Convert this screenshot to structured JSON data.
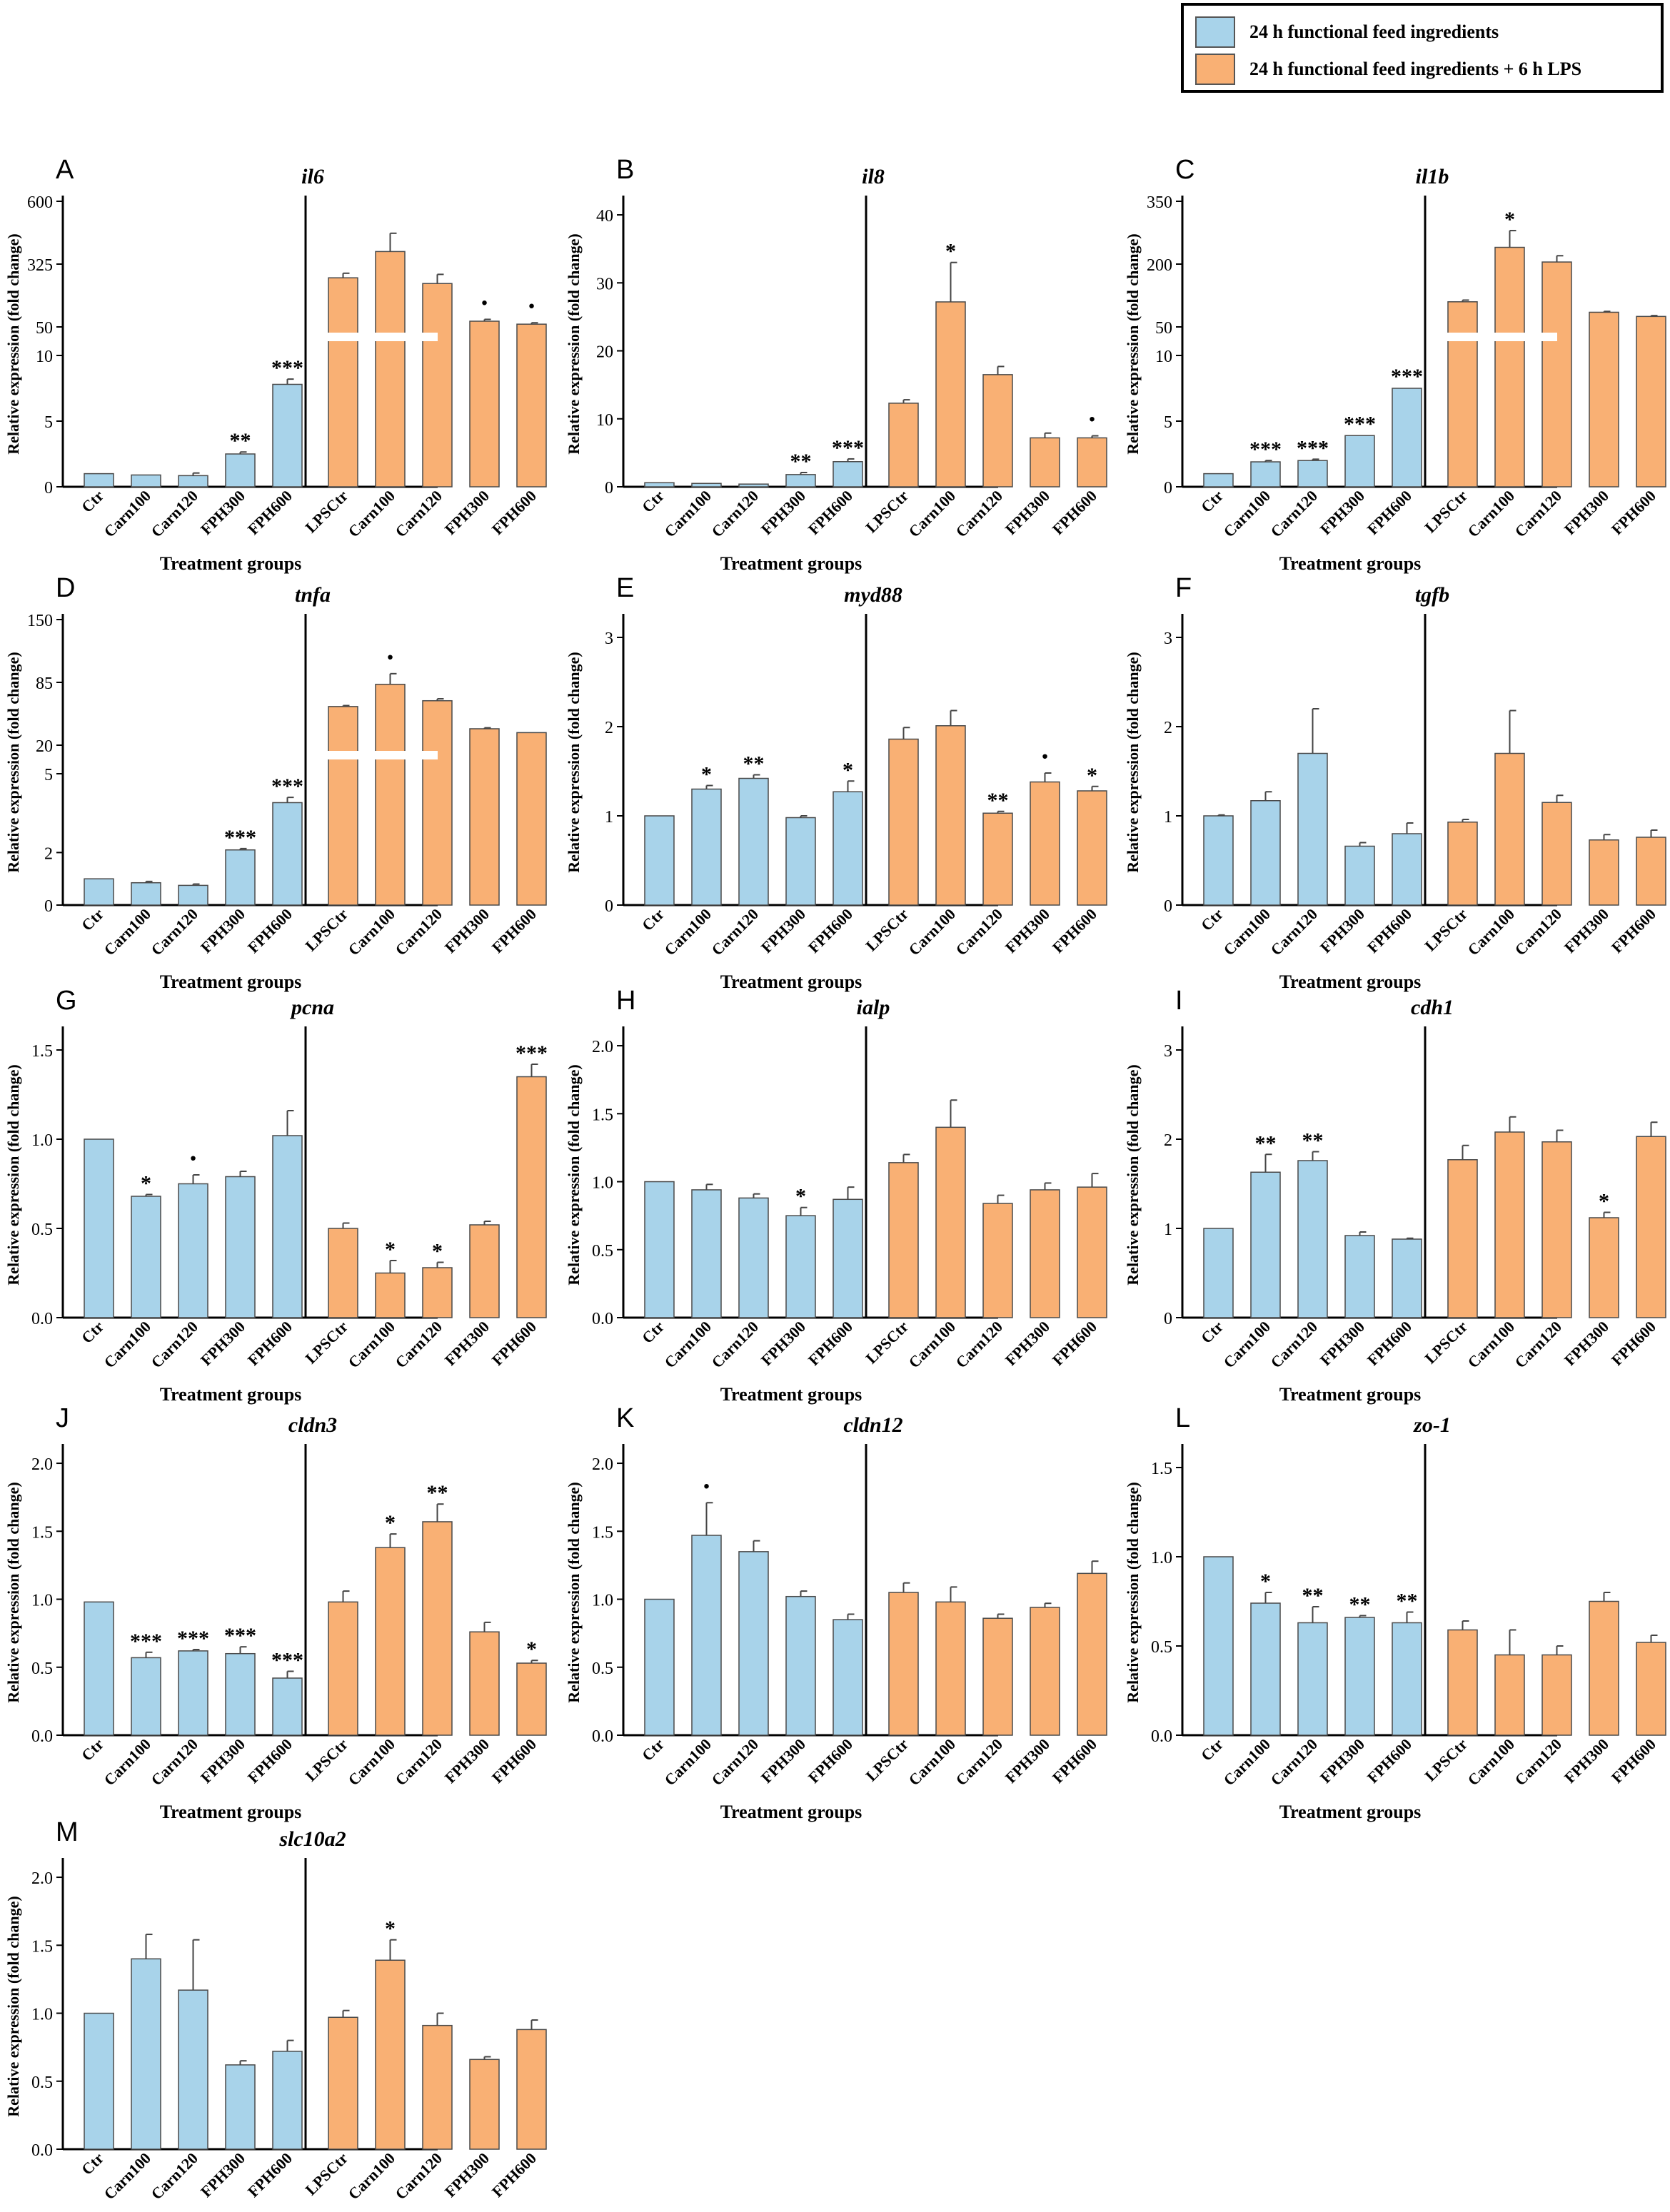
{
  "legend": {
    "items": [
      {
        "label": "24 h functional feed ingredients",
        "color": "#a8d3ea"
      },
      {
        "label": "24 h functional feed ingredients + 6 h LPS",
        "color": "#f9b074"
      }
    ]
  },
  "axis_labels": {
    "y": "Relative expression (fold change)",
    "x": "Treatment groups"
  },
  "colors": {
    "control_bars": "#a8d3ea",
    "lps_bars": "#f9b074",
    "bar_edge": "#4a4a4a"
  },
  "chart_data": [
    {
      "panel": "A",
      "title": "il6",
      "type": "bar",
      "broken_axis": true,
      "lower_ticks": [
        "0",
        "5",
        "10"
      ],
      "lower_range": [
        0,
        10
      ],
      "upper_ticks": [
        "50",
        "325",
        "600"
      ],
      "upper_range": [
        50,
        600
      ],
      "groups": [
        {
          "name": "24 h functional feed ingredients",
          "categories": [
            "Ctr",
            "Carn100",
            "Carn120",
            "FPH300",
            "FPH600"
          ],
          "values": [
            1.0,
            0.9,
            0.85,
            2.5,
            7.8
          ],
          "errors": [
            0.05,
            0.05,
            0.2,
            0.15,
            0.4
          ],
          "significance": [
            "",
            "",
            "",
            "**",
            "***"
          ]
        },
        {
          "name": "24 h functional feed ingredients + 6 h LPS",
          "categories": [
            "LPSCtr",
            "Carn100",
            "Carn120",
            "FPH300",
            "FPH600"
          ],
          "values": [
            265,
            380,
            240,
            75,
            62
          ],
          "errors": [
            20,
            80,
            40,
            8,
            6
          ],
          "significance": [
            "",
            "",
            "",
            "·",
            "·"
          ]
        }
      ]
    },
    {
      "panel": "B",
      "title": "il8",
      "type": "bar",
      "broken_axis": false,
      "ticks": [
        "0",
        "10",
        "20",
        "30",
        "40"
      ],
      "ylim": [
        0,
        42
      ],
      "groups": [
        {
          "name": "24 h functional feed ingredients",
          "categories": [
            "Ctr",
            "Carn100",
            "Carn120",
            "FPH300",
            "FPH600"
          ],
          "values": [
            0.6,
            0.5,
            0.4,
            1.8,
            3.7
          ],
          "errors": [
            0.05,
            0.1,
            0.1,
            0.3,
            0.4
          ],
          "significance": [
            "",
            "",
            "",
            "**",
            "***"
          ]
        },
        {
          "name": "24 h functional feed ingredients + 6 h LPS",
          "categories": [
            "LPSCtr",
            "Carn100",
            "Carn120",
            "FPH300",
            "FPH600"
          ],
          "values": [
            12.3,
            27.2,
            16.5,
            7.2,
            7.2
          ],
          "errors": [
            0.5,
            5.8,
            1.2,
            0.7,
            0.3
          ],
          "significance": [
            "",
            "*",
            "",
            "",
            "·"
          ]
        }
      ]
    },
    {
      "panel": "C",
      "title": "il1b",
      "type": "bar",
      "broken_axis": true,
      "lower_ticks": [
        "0",
        "5",
        "10"
      ],
      "lower_range": [
        0,
        10
      ],
      "upper_ticks": [
        "50",
        "200",
        "350"
      ],
      "upper_range": [
        50,
        350
      ],
      "groups": [
        {
          "name": "24 h functional feed ingredients",
          "categories": [
            "Ctr",
            "Carn100",
            "Carn120",
            "FPH300",
            "FPH600"
          ],
          "values": [
            1.0,
            1.9,
            2.0,
            3.9,
            7.5
          ],
          "errors": [
            0.05,
            0.1,
            0.1,
            0.05,
            0.05
          ],
          "significance": [
            "",
            "***",
            "***",
            "***",
            "***"
          ]
        },
        {
          "name": "24 h functional feed ingredients + 6 h LPS",
          "categories": [
            "LPSCtr",
            "Carn100",
            "Carn120",
            "FPH300",
            "FPH600"
          ],
          "values": [
            110,
            240,
            205,
            85,
            75
          ],
          "errors": [
            4,
            40,
            15,
            2,
            2
          ],
          "significance": [
            "",
            "*",
            "",
            "",
            ""
          ]
        }
      ]
    },
    {
      "panel": "D",
      "title": "tnfa",
      "type": "bar",
      "broken_axis": true,
      "lower_ticks": [
        "0",
        "2",
        "5"
      ],
      "lower_range": [
        0,
        5
      ],
      "upper_ticks": [
        "20",
        "85",
        "150"
      ],
      "upper_range": [
        20,
        150
      ],
      "groups": [
        {
          "name": "24 h functional feed ingredients",
          "categories": [
            "Ctr",
            "Carn100",
            "Carn120",
            "FPH300",
            "FPH600"
          ],
          "values": [
            1.0,
            0.85,
            0.75,
            2.1,
            3.9
          ],
          "errors": [
            0.02,
            0.05,
            0.05,
            0.05,
            0.2
          ],
          "significance": [
            "",
            "",
            "",
            "***",
            "***"
          ]
        },
        {
          "name": "24 h functional feed ingredients + 6 h LPS",
          "categories": [
            "LPSCtr",
            "Carn100",
            "Carn120",
            "FPH300",
            "FPH600"
          ],
          "values": [
            60,
            83,
            66,
            37,
            33
          ],
          "errors": [
            1,
            11,
            2,
            1,
            0.5
          ],
          "significance": [
            "",
            "·",
            "",
            "",
            ""
          ]
        }
      ]
    },
    {
      "panel": "E",
      "title": "myd88",
      "type": "bar",
      "broken_axis": false,
      "ticks": [
        "0",
        "1",
        "2",
        "3"
      ],
      "ylim": [
        0,
        3.2
      ],
      "groups": [
        {
          "name": "24 h functional feed ingredients",
          "categories": [
            "Ctr",
            "Carn100",
            "Carn120",
            "FPH300",
            "FPH600"
          ],
          "values": [
            1.0,
            1.3,
            1.42,
            0.98,
            1.27
          ],
          "errors": [
            0.005,
            0.04,
            0.04,
            0.02,
            0.12
          ],
          "significance": [
            "",
            "*",
            "**",
            "",
            "*"
          ]
        },
        {
          "name": "24 h functional feed ingredients + 6 h LPS",
          "categories": [
            "LPSCtr",
            "Carn100",
            "Carn120",
            "FPH300",
            "FPH600"
          ],
          "values": [
            1.86,
            2.01,
            1.03,
            1.38,
            1.28
          ],
          "errors": [
            0.13,
            0.17,
            0.02,
            0.1,
            0.05
          ],
          "significance": [
            "",
            "",
            "**",
            "·",
            "*"
          ]
        }
      ]
    },
    {
      "panel": "F",
      "title": "tgfb",
      "type": "bar",
      "broken_axis": false,
      "ticks": [
        "0",
        "1",
        "2",
        "3"
      ],
      "ylim": [
        0,
        3.2
      ],
      "groups": [
        {
          "name": "24 h functional feed ingredients",
          "categories": [
            "Ctr",
            "Carn100",
            "Carn120",
            "FPH300",
            "FPH600"
          ],
          "values": [
            1.0,
            1.17,
            1.7,
            0.66,
            0.8
          ],
          "errors": [
            0.01,
            0.1,
            0.5,
            0.04,
            0.12
          ],
          "significance": [
            "",
            "",
            "",
            "",
            ""
          ]
        },
        {
          "name": "24 h functional feed ingredients + 6 h LPS",
          "categories": [
            "LPSCtr",
            "Carn100",
            "Carn120",
            "FPH300",
            "FPH600"
          ],
          "values": [
            0.93,
            1.7,
            1.15,
            0.73,
            0.76
          ],
          "errors": [
            0.03,
            0.48,
            0.08,
            0.06,
            0.08
          ],
          "significance": [
            "",
            "",
            "",
            "",
            ""
          ]
        }
      ]
    },
    {
      "panel": "G",
      "title": "pcna",
      "type": "bar",
      "broken_axis": false,
      "ticks": [
        "0.0",
        "0.5",
        "1.0",
        "1.5"
      ],
      "ylim": [
        0,
        1.6
      ],
      "groups": [
        {
          "name": "24 h functional feed ingredients",
          "categories": [
            "Ctr",
            "Carn100",
            "Carn120",
            "FPH300",
            "FPH600"
          ],
          "values": [
            1.0,
            0.68,
            0.75,
            0.79,
            1.02
          ],
          "errors": [
            0.003,
            0.01,
            0.05,
            0.03,
            0.14
          ],
          "significance": [
            "",
            "*",
            "·",
            "",
            ""
          ]
        },
        {
          "name": "24 h functional feed ingredients + 6 h LPS",
          "categories": [
            "LPSCtr",
            "Carn100",
            "Carn120",
            "FPH300",
            "FPH600"
          ],
          "values": [
            0.5,
            0.25,
            0.28,
            0.52,
            1.35
          ],
          "errors": [
            0.03,
            0.07,
            0.03,
            0.02,
            0.07
          ],
          "significance": [
            "",
            "*",
            "*",
            "",
            "***"
          ]
        }
      ]
    },
    {
      "panel": "H",
      "title": "ialp",
      "type": "bar",
      "broken_axis": false,
      "ticks": [
        "0.0",
        "0.5",
        "1.0",
        "1.5",
        "2.0"
      ],
      "ylim": [
        0,
        2.1
      ],
      "groups": [
        {
          "name": "24 h functional feed ingredients",
          "categories": [
            "Ctr",
            "Carn100",
            "Carn120",
            "FPH300",
            "FPH600"
          ],
          "values": [
            1.0,
            0.94,
            0.88,
            0.75,
            0.87
          ],
          "errors": [
            0.005,
            0.04,
            0.03,
            0.06,
            0.09
          ],
          "significance": [
            "",
            "",
            "",
            "*",
            ""
          ]
        },
        {
          "name": "24 h functional feed ingredients + 6 h LPS",
          "categories": [
            "LPSCtr",
            "Carn100",
            "Carn120",
            "FPH300",
            "FPH600"
          ],
          "values": [
            1.14,
            1.4,
            0.84,
            0.94,
            0.96
          ],
          "errors": [
            0.06,
            0.2,
            0.06,
            0.05,
            0.1
          ],
          "significance": [
            "",
            "",
            "",
            "",
            ""
          ]
        }
      ]
    },
    {
      "panel": "I",
      "title": "cdh1",
      "type": "bar",
      "broken_axis": false,
      "ticks": [
        "0",
        "1",
        "2",
        "3"
      ],
      "ylim": [
        0,
        3.2
      ],
      "groups": [
        {
          "name": "24 h functional feed ingredients",
          "categories": [
            "Ctr",
            "Carn100",
            "Carn120",
            "FPH300",
            "FPH600"
          ],
          "values": [
            1.0,
            1.63,
            1.76,
            0.92,
            0.88
          ],
          "errors": [
            0.005,
            0.2,
            0.1,
            0.04,
            0.01
          ],
          "significance": [
            "",
            "**",
            "**",
            "",
            ""
          ]
        },
        {
          "name": "24 h functional feed ingredients + 6 h LPS",
          "categories": [
            "LPSCtr",
            "Carn100",
            "Carn120",
            "FPH300",
            "FPH600"
          ],
          "values": [
            1.77,
            2.08,
            1.97,
            1.12,
            2.03
          ],
          "errors": [
            0.16,
            0.17,
            0.13,
            0.06,
            0.16
          ],
          "significance": [
            "",
            "",
            "",
            "*",
            ""
          ]
        }
      ]
    },
    {
      "panel": "J",
      "title": "cldn3",
      "type": "bar",
      "broken_axis": false,
      "ticks": [
        "0.0",
        "0.5",
        "1.0",
        "1.5",
        "2.0"
      ],
      "ylim": [
        0,
        2.1
      ],
      "groups": [
        {
          "name": "24 h functional feed ingredients",
          "categories": [
            "Ctr",
            "Carn100",
            "Carn120",
            "FPH300",
            "FPH600"
          ],
          "values": [
            0.98,
            0.57,
            0.62,
            0.6,
            0.42
          ],
          "errors": [
            0.005,
            0.04,
            0.01,
            0.05,
            0.05
          ],
          "significance": [
            "",
            "***",
            "***",
            "***",
            "***"
          ]
        },
        {
          "name": "24 h functional feed ingredients + 6 h LPS",
          "categories": [
            "LPSCtr",
            "Carn100",
            "Carn120",
            "FPH300",
            "FPH600"
          ],
          "values": [
            0.98,
            1.38,
            1.57,
            0.76,
            0.53
          ],
          "errors": [
            0.08,
            0.1,
            0.13,
            0.07,
            0.02
          ],
          "significance": [
            "",
            "*",
            "**",
            "",
            "*"
          ]
        }
      ]
    },
    {
      "panel": "K",
      "title": "cldn12",
      "type": "bar",
      "broken_axis": false,
      "ticks": [
        "0.0",
        "0.5",
        "1.0",
        "1.5",
        "2.0"
      ],
      "ylim": [
        0,
        2.1
      ],
      "groups": [
        {
          "name": "24 h functional feed ingredients",
          "categories": [
            "Ctr",
            "Carn100",
            "Carn120",
            "FPH300",
            "FPH600"
          ],
          "values": [
            1.0,
            1.47,
            1.35,
            1.02,
            0.85
          ],
          "errors": [
            0.005,
            0.24,
            0.08,
            0.04,
            0.04
          ],
          "significance": [
            "",
            "·",
            "",
            "",
            ""
          ]
        },
        {
          "name": "24 h functional feed ingredients + 6 h LPS",
          "categories": [
            "LPSCtr",
            "Carn100",
            "Carn120",
            "FPH300",
            "FPH600"
          ],
          "values": [
            1.05,
            0.98,
            0.86,
            0.94,
            1.19
          ],
          "errors": [
            0.07,
            0.11,
            0.03,
            0.03,
            0.09
          ],
          "significance": [
            "",
            "",
            "",
            "",
            ""
          ]
        }
      ]
    },
    {
      "panel": "L",
      "title": "zo-1",
      "type": "bar",
      "broken_axis": false,
      "ticks": [
        "0.0",
        "0.5",
        "1.0",
        "1.5"
      ],
      "ylim": [
        0,
        1.6
      ],
      "groups": [
        {
          "name": "24 h functional feed ingredients",
          "categories": [
            "Ctr",
            "Carn100",
            "Carn120",
            "FPH300",
            "FPH600"
          ],
          "values": [
            1.0,
            0.74,
            0.63,
            0.66,
            0.63
          ],
          "errors": [
            0.002,
            0.06,
            0.09,
            0.01,
            0.06
          ],
          "significance": [
            "",
            "*",
            "**",
            "**",
            "**"
          ]
        },
        {
          "name": "24 h functional feed ingredients + 6 h LPS",
          "categories": [
            "LPSCtr",
            "Carn100",
            "Carn120",
            "FPH300",
            "FPH600"
          ],
          "values": [
            0.59,
            0.45,
            0.45,
            0.75,
            0.52
          ],
          "errors": [
            0.05,
            0.14,
            0.05,
            0.05,
            0.04
          ],
          "significance": [
            "",
            "",
            "",
            "",
            ""
          ]
        }
      ]
    },
    {
      "panel": "M",
      "title": "slc10a2",
      "type": "bar",
      "broken_axis": false,
      "ticks": [
        "0.0",
        "0.5",
        "1.0",
        "1.5",
        "2.0"
      ],
      "ylim": [
        0,
        2.1
      ],
      "groups": [
        {
          "name": "24 h functional feed ingredients",
          "categories": [
            "Ctr",
            "Carn100",
            "Carn120",
            "FPH300",
            "FPH600"
          ],
          "values": [
            1.0,
            1.4,
            1.17,
            0.62,
            0.72
          ],
          "errors": [
            0.005,
            0.18,
            0.37,
            0.03,
            0.08
          ],
          "significance": [
            "",
            "",
            "",
            "",
            ""
          ]
        },
        {
          "name": "24 h functional feed ingredients + 6 h LPS",
          "categories": [
            "LPSCtr",
            "Carn100",
            "Carn120",
            "FPH300",
            "FPH600"
          ],
          "values": [
            0.97,
            1.39,
            0.91,
            0.66,
            0.88
          ],
          "errors": [
            0.05,
            0.15,
            0.09,
            0.02,
            0.07
          ],
          "significance": [
            "",
            "*",
            "",
            "",
            ""
          ]
        }
      ]
    }
  ]
}
